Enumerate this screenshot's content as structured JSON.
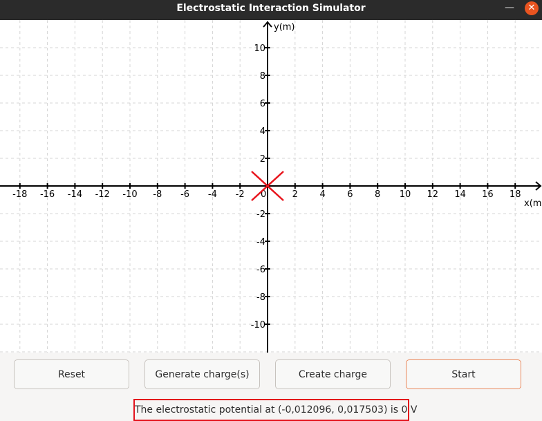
{
  "window": {
    "title": "Electrostatic Interaction Simulator",
    "minimize_glyph": "—",
    "close_glyph": "✕"
  },
  "plot": {
    "x_axis_label": "x(m)",
    "y_axis_label": "y(m)",
    "origin_label": "0",
    "x_ticks": [
      "-18",
      "-16",
      "-14",
      "-12",
      "-10",
      "-8",
      "-6",
      "-4",
      "-2",
      "2",
      "4",
      "6",
      "8",
      "10",
      "12",
      "14",
      "16",
      "18"
    ],
    "y_ticks": [
      "10",
      "8",
      "6",
      "4",
      "2",
      "-2",
      "-4",
      "-6",
      "-8",
      "-10"
    ],
    "marker": {
      "x": 0,
      "y": 0,
      "color": "#e8141c",
      "icon": "x-cross-icon"
    },
    "grid": "dashed"
  },
  "controls": {
    "reset_label": "Reset",
    "generate_label": "Generate charge(s)",
    "create_label": "Create charge",
    "start_label": "Start"
  },
  "status": {
    "text": "The electrostatic potential at (-0,012096, 0,017503) is 0 V",
    "border_color": "#e3121c"
  }
}
